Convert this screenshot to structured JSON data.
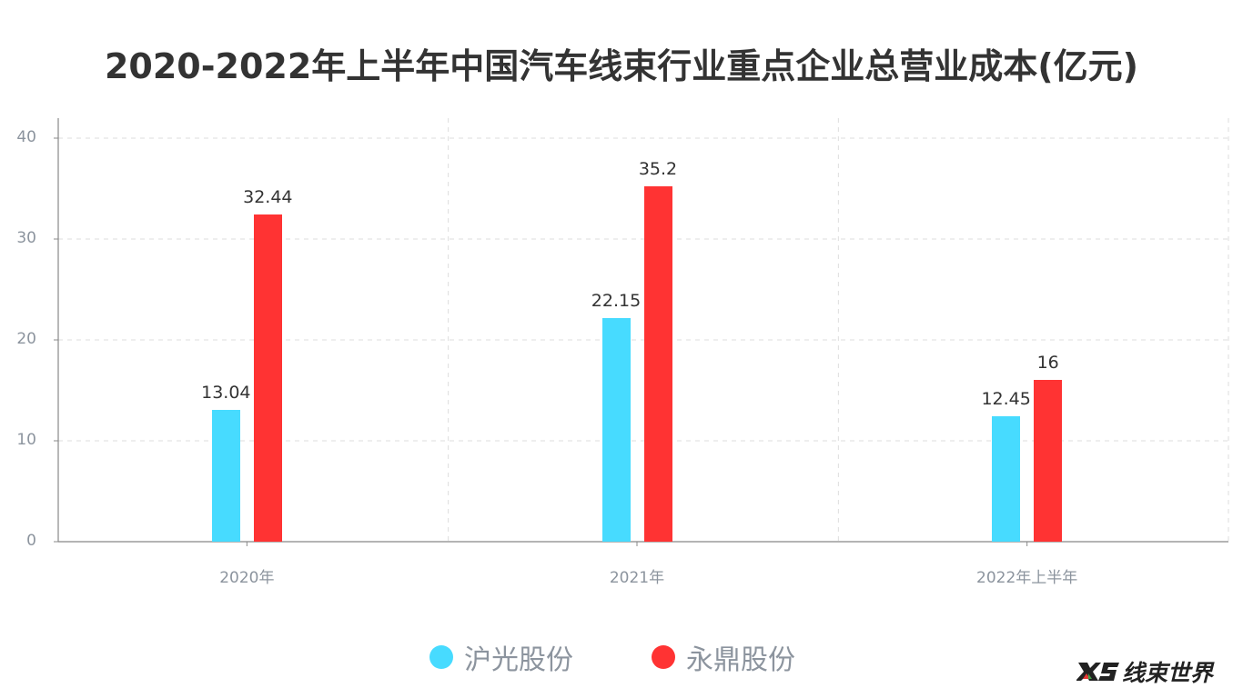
{
  "title": "2020-2022年上半年中国汽车线束行业重点企业总营业成本(亿元)",
  "legend": [
    {
      "name": "沪光股份",
      "color": "#47dbff"
    },
    {
      "name": "永鼎股份",
      "color": "#ff3333"
    }
  ],
  "watermark": {
    "icon": "xs-logo-icon",
    "text": "线束世界"
  },
  "chart_data": {
    "type": "bar",
    "title": "2020-2022年上半年中国汽车线束行业重点企业总营业成本(亿元)",
    "categories": [
      "2020年",
      "2021年",
      "2022年上半年"
    ],
    "series": [
      {
        "name": "沪光股份",
        "color": "#47dbff",
        "values": [
          13.04,
          22.15,
          12.45
        ]
      },
      {
        "name": "永鼎股份",
        "color": "#ff3333",
        "values": [
          32.44,
          35.2,
          16
        ]
      }
    ],
    "value_labels": {
      "沪光股份": [
        "13.04",
        "22.15",
        "12.45"
      ],
      "永鼎股份": [
        "32.44",
        "35.2",
        "16"
      ]
    },
    "xlabel": "",
    "ylabel": "",
    "ylim": [
      0,
      40
    ],
    "yticks": [
      "0",
      "10",
      "20",
      "30",
      "40"
    ],
    "grid": true,
    "legend_position": "bottom"
  }
}
